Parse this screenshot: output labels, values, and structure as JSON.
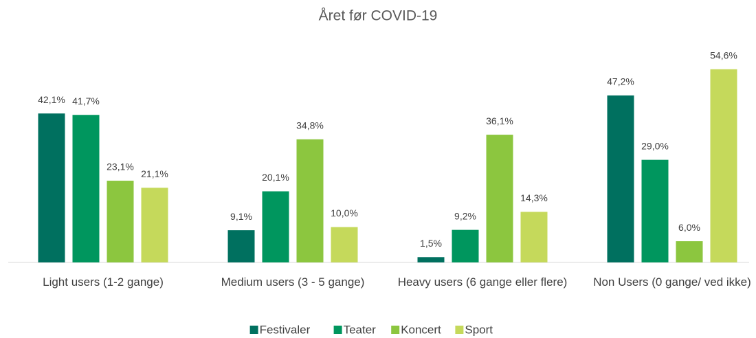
{
  "chart_data": {
    "type": "bar",
    "title": "Året før COVID-19",
    "categories": [
      "Light users (1-2 gange)",
      "Medium users (3 - 5 gange)",
      "Heavy users (6 gange eller flere)",
      "Non Users (0 gange/ ved ikke)"
    ],
    "series": [
      {
        "name": "Festivaler",
        "color": "#00705f",
        "values": [
          42.1,
          9.1,
          1.5,
          47.2
        ],
        "value_labels": [
          "42,1%",
          "9,1%",
          "1,5%",
          "47,2%"
        ]
      },
      {
        "name": "Teater",
        "color": "#00965e",
        "values": [
          41.7,
          20.1,
          9.2,
          29.0
        ],
        "value_labels": [
          "41,7%",
          "20,1%",
          "9,2%",
          "29,0%"
        ]
      },
      {
        "name": "Koncert",
        "color": "#8cc63f",
        "values": [
          23.1,
          34.8,
          36.1,
          6.0
        ],
        "value_labels": [
          "23,1%",
          "34,8%",
          "36,1%",
          "6,0%"
        ]
      },
      {
        "name": "Sport",
        "color": "#c5d95b",
        "values": [
          21.1,
          10.0,
          14.3,
          54.6
        ],
        "value_labels": [
          "21,1%",
          "10,0%",
          "14,3%",
          "54,6%"
        ]
      }
    ],
    "ylim": [
      0,
      60
    ],
    "legend": "bottom"
  }
}
